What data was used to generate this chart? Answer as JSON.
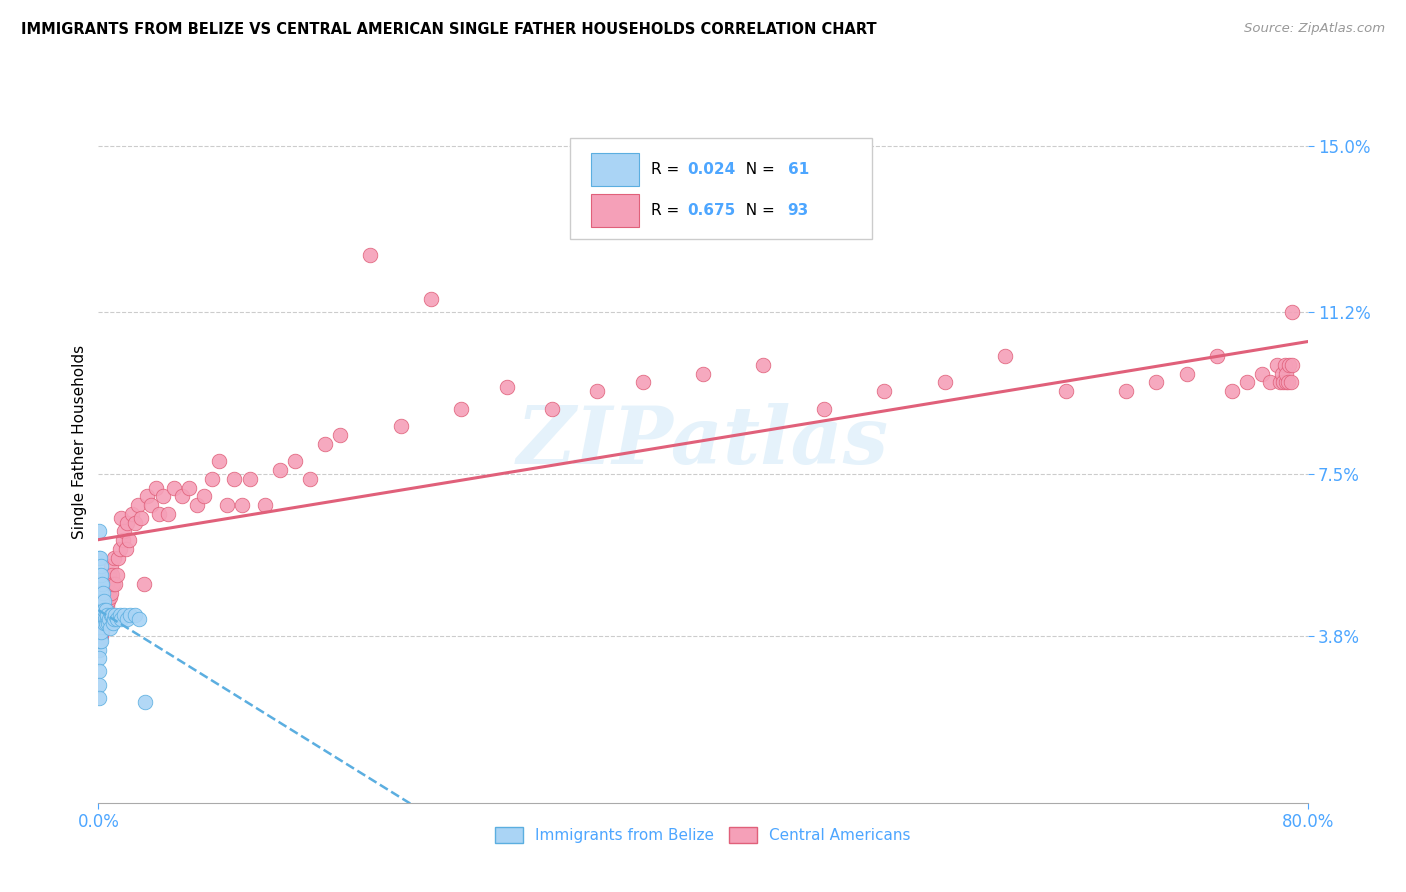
{
  "title": "IMMIGRANTS FROM BELIZE VS CENTRAL AMERICAN SINGLE FATHER HOUSEHOLDS CORRELATION CHART",
  "source": "Source: ZipAtlas.com",
  "ylabel": "Single Father Households",
  "xlim": [
    0.0,
    0.8
  ],
  "ylim": [
    0.0,
    0.165
  ],
  "yticks_right": [
    0.038,
    0.075,
    0.112,
    0.15
  ],
  "ytick_labels_right": [
    "3.8%",
    "7.5%",
    "11.2%",
    "15.0%"
  ],
  "xtick_positions": [
    0.0,
    0.8
  ],
  "xtick_labels": [
    "0.0%",
    "80.0%"
  ],
  "belize_color": "#aad4f5",
  "belize_edge_color": "#5baee0",
  "central_color": "#f5a0b8",
  "central_edge_color": "#e0607a",
  "belize_line_color": "#5baee0",
  "central_line_color": "#e0607a",
  "belize_R": 0.024,
  "belize_N": 61,
  "central_R": 0.675,
  "central_N": 93,
  "legend_label1": "Immigrants from Belize",
  "legend_label2": "Central Americans",
  "watermark": "ZIPatlas",
  "belize_scatter_x": [
    0.0005,
    0.0005,
    0.0005,
    0.0005,
    0.0005,
    0.0005,
    0.0005,
    0.0005,
    0.0005,
    0.0005,
    0.0005,
    0.0005,
    0.0005,
    0.001,
    0.001,
    0.001,
    0.001,
    0.001,
    0.001,
    0.001,
    0.0015,
    0.0015,
    0.0015,
    0.0015,
    0.0015,
    0.0015,
    0.002,
    0.002,
    0.002,
    0.002,
    0.002,
    0.0025,
    0.0025,
    0.0025,
    0.003,
    0.003,
    0.0035,
    0.0035,
    0.004,
    0.0045,
    0.005,
    0.005,
    0.0055,
    0.006,
    0.0065,
    0.007,
    0.0075,
    0.008,
    0.009,
    0.0095,
    0.01,
    0.011,
    0.012,
    0.014,
    0.015,
    0.017,
    0.019,
    0.021,
    0.024,
    0.027,
    0.031
  ],
  "belize_scatter_y": [
    0.062,
    0.056,
    0.05,
    0.046,
    0.044,
    0.042,
    0.039,
    0.037,
    0.035,
    0.033,
    0.03,
    0.027,
    0.024,
    0.056,
    0.052,
    0.048,
    0.045,
    0.043,
    0.04,
    0.037,
    0.054,
    0.05,
    0.046,
    0.044,
    0.04,
    0.037,
    0.052,
    0.048,
    0.045,
    0.042,
    0.039,
    0.05,
    0.046,
    0.043,
    0.048,
    0.043,
    0.046,
    0.041,
    0.044,
    0.042,
    0.044,
    0.041,
    0.042,
    0.043,
    0.041,
    0.042,
    0.04,
    0.043,
    0.043,
    0.041,
    0.042,
    0.043,
    0.042,
    0.043,
    0.042,
    0.043,
    0.042,
    0.043,
    0.043,
    0.042,
    0.023
  ],
  "central_scatter_x": [
    0.0005,
    0.001,
    0.0015,
    0.002,
    0.0025,
    0.003,
    0.0035,
    0.004,
    0.0045,
    0.005,
    0.0055,
    0.006,
    0.0065,
    0.007,
    0.0075,
    0.008,
    0.0085,
    0.009,
    0.0095,
    0.01,
    0.011,
    0.012,
    0.013,
    0.014,
    0.015,
    0.016,
    0.017,
    0.018,
    0.019,
    0.02,
    0.022,
    0.024,
    0.026,
    0.028,
    0.03,
    0.032,
    0.035,
    0.038,
    0.04,
    0.043,
    0.046,
    0.05,
    0.055,
    0.06,
    0.065,
    0.07,
    0.075,
    0.08,
    0.085,
    0.09,
    0.095,
    0.1,
    0.11,
    0.12,
    0.13,
    0.14,
    0.15,
    0.16,
    0.18,
    0.2,
    0.22,
    0.24,
    0.27,
    0.3,
    0.33,
    0.36,
    0.4,
    0.44,
    0.48,
    0.52,
    0.56,
    0.6,
    0.64,
    0.68,
    0.7,
    0.72,
    0.74,
    0.75,
    0.76,
    0.77,
    0.775,
    0.78,
    0.782,
    0.783,
    0.784,
    0.785,
    0.7855,
    0.786,
    0.787,
    0.788,
    0.789,
    0.7895,
    0.7898
  ],
  "central_scatter_y": [
    0.039,
    0.04,
    0.038,
    0.042,
    0.039,
    0.044,
    0.041,
    0.046,
    0.043,
    0.048,
    0.045,
    0.05,
    0.046,
    0.052,
    0.047,
    0.054,
    0.048,
    0.052,
    0.05,
    0.056,
    0.05,
    0.052,
    0.056,
    0.058,
    0.065,
    0.06,
    0.062,
    0.058,
    0.064,
    0.06,
    0.066,
    0.064,
    0.068,
    0.065,
    0.05,
    0.07,
    0.068,
    0.072,
    0.066,
    0.07,
    0.066,
    0.072,
    0.07,
    0.072,
    0.068,
    0.07,
    0.074,
    0.078,
    0.068,
    0.074,
    0.068,
    0.074,
    0.068,
    0.076,
    0.078,
    0.074,
    0.082,
    0.084,
    0.125,
    0.086,
    0.115,
    0.09,
    0.095,
    0.09,
    0.094,
    0.096,
    0.098,
    0.1,
    0.09,
    0.094,
    0.096,
    0.102,
    0.094,
    0.094,
    0.096,
    0.098,
    0.102,
    0.094,
    0.096,
    0.098,
    0.096,
    0.1,
    0.096,
    0.098,
    0.096,
    0.1,
    0.096,
    0.098,
    0.096,
    0.1,
    0.096,
    0.112,
    0.1
  ]
}
